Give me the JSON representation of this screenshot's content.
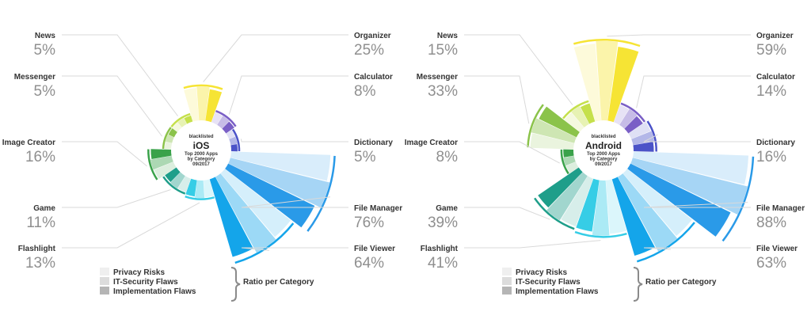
{
  "legend": {
    "items": [
      "Privacy Risks",
      "IT-Security Flaws",
      "Implementation Flaws"
    ],
    "ratio_label": "Ratio per Category"
  },
  "chart_data": [
    {
      "type": "radial-bar",
      "platform": "iOS",
      "center_top": "blacklisted",
      "center_title": "iOS",
      "center_lines": [
        "Top 2000 Apps",
        "by Category",
        "09/2017"
      ],
      "categories": [
        {
          "name": "Organizer",
          "value_label": "25%",
          "value": 25,
          "color": "#f6e434"
        },
        {
          "name": "Calculator",
          "value_label": "8%",
          "value": 8,
          "color": "#7a5fc6"
        },
        {
          "name": "Dictionary",
          "value_label": "5%",
          "value": 5,
          "color": "#4b53c8"
        },
        {
          "name": "File Manager",
          "value_label": "76%",
          "value": 76,
          "color": "#2a9ae8"
        },
        {
          "name": "File Viewer",
          "value_label": "64%",
          "value": 64,
          "color": "#14a5ea"
        },
        {
          "name": "Flashlight",
          "value_label": "13%",
          "value": 13,
          "color": "#36cde6"
        },
        {
          "name": "Game",
          "value_label": "11%",
          "value": 11,
          "color": "#1e9e8a"
        },
        {
          "name": "Image Creator",
          "value_label": "16%",
          "value": 16,
          "color": "#3aa24a"
        },
        {
          "name": "Messenger",
          "value_label": "5%",
          "value": 5,
          "color": "#8bc34a"
        },
        {
          "name": "News",
          "value_label": "5%",
          "value": 5,
          "color": "#c5e04b"
        }
      ]
    },
    {
      "type": "radial-bar",
      "platform": "Android",
      "center_top": "blacklisted",
      "center_title": "Android",
      "center_lines": [
        "Top 2000 Apps",
        "by Category",
        "09/2017"
      ],
      "categories": [
        {
          "name": "Organizer",
          "value_label": "59%",
          "value": 59,
          "color": "#f6e434"
        },
        {
          "name": "Calculator",
          "value_label": "14%",
          "value": 14,
          "color": "#7a5fc6"
        },
        {
          "name": "Dictionary",
          "value_label": "16%",
          "value": 16,
          "color": "#4b53c8"
        },
        {
          "name": "File Manager",
          "value_label": "88%",
          "value": 88,
          "color": "#2a9ae8"
        },
        {
          "name": "File Viewer",
          "value_label": "63%",
          "value": 63,
          "color": "#14a5ea"
        },
        {
          "name": "Flashlight",
          "value_label": "41%",
          "value": 41,
          "color": "#36cde6"
        },
        {
          "name": "Game",
          "value_label": "39%",
          "value": 39,
          "color": "#1e9e8a"
        },
        {
          "name": "Image Creator",
          "value_label": "8%",
          "value": 8,
          "color": "#3aa24a"
        },
        {
          "name": "Messenger",
          "value_label": "33%",
          "value": 33,
          "color": "#8bc34a"
        },
        {
          "name": "News",
          "value_label": "15%",
          "value": 15,
          "color": "#c5e04b"
        }
      ]
    }
  ]
}
